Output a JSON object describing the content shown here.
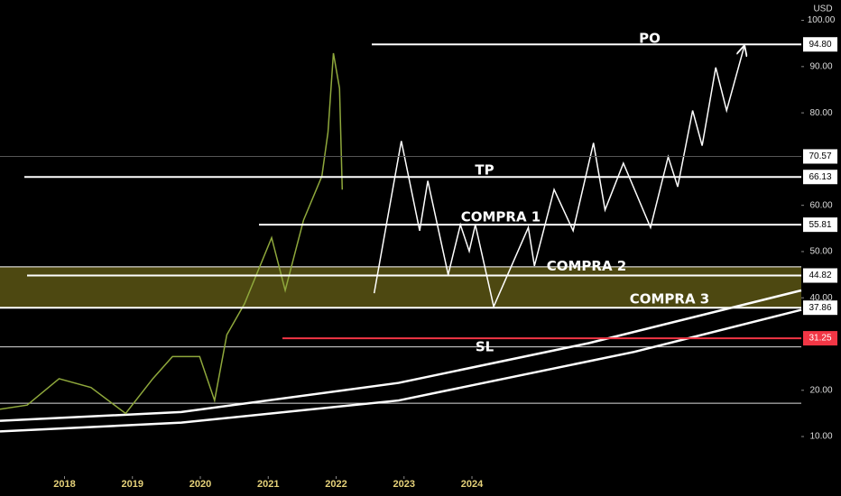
{
  "chart_data": {
    "type": "line",
    "currency": "USD",
    "xlim": [
      2017.05,
      2028.85
    ],
    "xticks": [
      2018,
      2019,
      2020,
      2021,
      2022,
      2023,
      2024
    ],
    "ylim": [
      2.6,
      104.4
    ],
    "yticks": [
      {
        "value": 10,
        "label": "10.00"
      },
      {
        "value": 20,
        "label": "20.00"
      },
      {
        "value": 40,
        "label": "40.00"
      },
      {
        "value": 50,
        "label": "50.00"
      },
      {
        "value": 60,
        "label": "60.00"
      },
      {
        "value": 80,
        "label": "80.00"
      },
      {
        "value": 90,
        "label": "90.00"
      },
      {
        "value": 100,
        "label": "100.00"
      }
    ],
    "series": [
      {
        "color": "#ffffff",
        "width": 2.5,
        "x": [
          2017.05,
          2019.72,
          2022.92,
          2025.72,
          2028.85
        ],
        "values": [
          13.4,
          15.3,
          21.6,
          30.2,
          41.6
        ]
      },
      {
        "color": "#ffffff",
        "width": 2.5,
        "x": [
          2017.05,
          2019.72,
          2022.92,
          2026.39,
          2028.85
        ],
        "values": [
          11.1,
          13.0,
          17.8,
          28.3,
          37.4
        ]
      },
      {
        "color": "#8fa83c",
        "width": 1.5,
        "x": [
          2017.05,
          2017.45,
          2017.92,
          2018.39,
          2018.9,
          2019.3,
          2019.59,
          2019.99,
          2020.21,
          2020.39,
          2020.65,
          2021.05,
          2021.25,
          2021.52,
          2021.79,
          2021.88,
          2021.96,
          2022.05,
          2022.09
        ],
        "values": [
          15.9,
          16.8,
          22.5,
          20.6,
          15.0,
          22.5,
          27.3,
          27.3,
          17.8,
          32.0,
          38.7,
          53.0,
          41.6,
          56.8,
          66.3,
          75.8,
          92.9,
          85.3,
          63.4
        ]
      },
      {
        "color": "#ffffff",
        "width": 1.5,
        "arrow": true,
        "x": [
          2022.56,
          2022.96,
          2023.23,
          2023.35,
          2023.65,
          2023.83,
          2023.96,
          2024.05,
          2024.32,
          2024.83,
          2024.92,
          2025.21,
          2025.49,
          2025.79,
          2025.96,
          2026.23,
          2026.63,
          2026.89,
          2027.03,
          2027.25,
          2027.39,
          2027.59,
          2027.75,
          2028.01
        ],
        "values": [
          41.0,
          73.9,
          54.5,
          65.3,
          45.0,
          55.8,
          50.1,
          55.8,
          38.1,
          55.2,
          46.9,
          63.4,
          54.5,
          73.5,
          59.0,
          69.1,
          55.2,
          70.5,
          64.0,
          80.5,
          72.9,
          89.8,
          80.5,
          94.4
        ]
      }
    ],
    "zone": {
      "values": [
        37.86,
        46.7
      ],
      "color": "#5a5514"
    },
    "guides": [
      29.4,
      17.2
    ],
    "levels": [
      {
        "name": "PO",
        "value": 94.8,
        "label": "94.80",
        "color": "#ffffff"
      },
      {
        "value": 70.57,
        "label": "70.57",
        "color": "#555555"
      },
      {
        "name": "TP",
        "value": 66.13,
        "label": "66.13",
        "color": "#ffffff"
      },
      {
        "name": "COMPRA 1",
        "value": 55.81,
        "label": "55.81",
        "color": "#ffffff"
      },
      {
        "name": "COMPRA 2",
        "value": 44.82,
        "label": "44.82",
        "color": "#ffffff"
      },
      {
        "name": "COMPRA 3",
        "value": 37.86,
        "label": "37.86",
        "color": "#ffffff"
      },
      {
        "name": "SL",
        "value": 31.25,
        "label": "31.25",
        "color": "#f23645"
      }
    ]
  }
}
